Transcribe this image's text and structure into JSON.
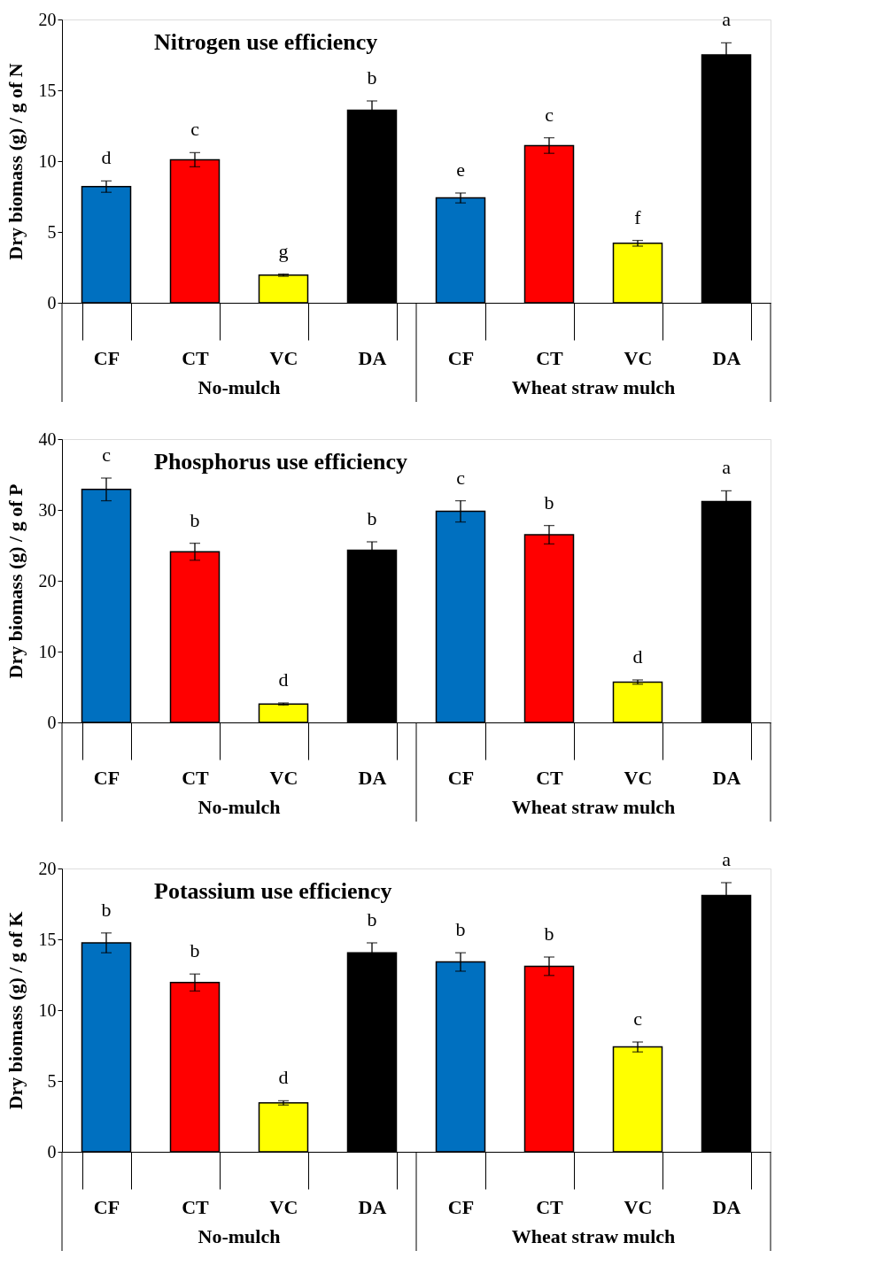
{
  "chart_data": [
    {
      "type": "bar",
      "title": "Nitrogen use efficiency",
      "ylabel": "Dry biomass  (g) / g of N",
      "categories": [
        "CF",
        "CT",
        "VC",
        "DA",
        "CF",
        "CT",
        "VC",
        "DA"
      ],
      "values": [
        8.2,
        10.1,
        1.95,
        13.6,
        7.4,
        11.1,
        4.2,
        17.5
      ],
      "errors": [
        0.4,
        0.5,
        0.08,
        0.65,
        0.35,
        0.55,
        0.2,
        0.85
      ],
      "value_labels": [
        "d",
        "c",
        "g",
        "b",
        "e",
        "c",
        "f",
        "a"
      ],
      "colors": [
        "#0070c0",
        "#ff0000",
        "#ffff00",
        "#000000",
        "#0070c0",
        "#ff0000",
        "#ffff00",
        "#000000"
      ],
      "ylim": [
        0,
        20
      ],
      "yticks": [
        0,
        5,
        10,
        15,
        20
      ],
      "annotations": [
        "No-mulch",
        "Wheat straw mulch"
      ]
    },
    {
      "type": "bar",
      "title": "Phosphorus use efficiency",
      "ylabel": "Dry biomass  (g) / g of P",
      "categories": [
        "CF",
        "CT",
        "VC",
        "DA",
        "CF",
        "CT",
        "VC",
        "DA"
      ],
      "values": [
        32.9,
        24.1,
        2.6,
        24.3,
        29.8,
        26.5,
        5.7,
        31.2
      ],
      "errors": [
        1.6,
        1.2,
        0.15,
        1.2,
        1.5,
        1.3,
        0.3,
        1.5
      ],
      "value_labels": [
        "c",
        "b",
        "d",
        "b",
        "c",
        "b",
        "d",
        "a"
      ],
      "colors": [
        "#0070c0",
        "#ff0000",
        "#ffff00",
        "#000000",
        "#0070c0",
        "#ff0000",
        "#ffff00",
        "#000000"
      ],
      "ylim": [
        0,
        40
      ],
      "yticks": [
        0,
        10,
        20,
        30,
        40
      ],
      "annotations": [
        "No-mulch",
        "Wheat straw mulch"
      ]
    },
    {
      "type": "bar",
      "title": "Potassium use efficiency",
      "ylabel": "Dry biomass  (g) / g of K",
      "categories": [
        "CF",
        "CT",
        "VC",
        "DA",
        "CF",
        "CT",
        "VC",
        "DA"
      ],
      "values": [
        14.75,
        11.95,
        3.45,
        14.05,
        13.4,
        13.1,
        7.4,
        18.1
      ],
      "errors": [
        0.7,
        0.6,
        0.15,
        0.7,
        0.65,
        0.65,
        0.35,
        0.9
      ],
      "value_labels": [
        "b",
        "b",
        "d",
        "b",
        "b",
        "b",
        "c",
        "a"
      ],
      "colors": [
        "#0070c0",
        "#ff0000",
        "#ffff00",
        "#000000",
        "#0070c0",
        "#ff0000",
        "#ffff00",
        "#000000"
      ],
      "ylim": [
        0,
        20
      ],
      "yticks": [
        0,
        5,
        10,
        15,
        20
      ],
      "annotations": [
        "No-mulch",
        "Wheat straw mulch"
      ]
    }
  ]
}
